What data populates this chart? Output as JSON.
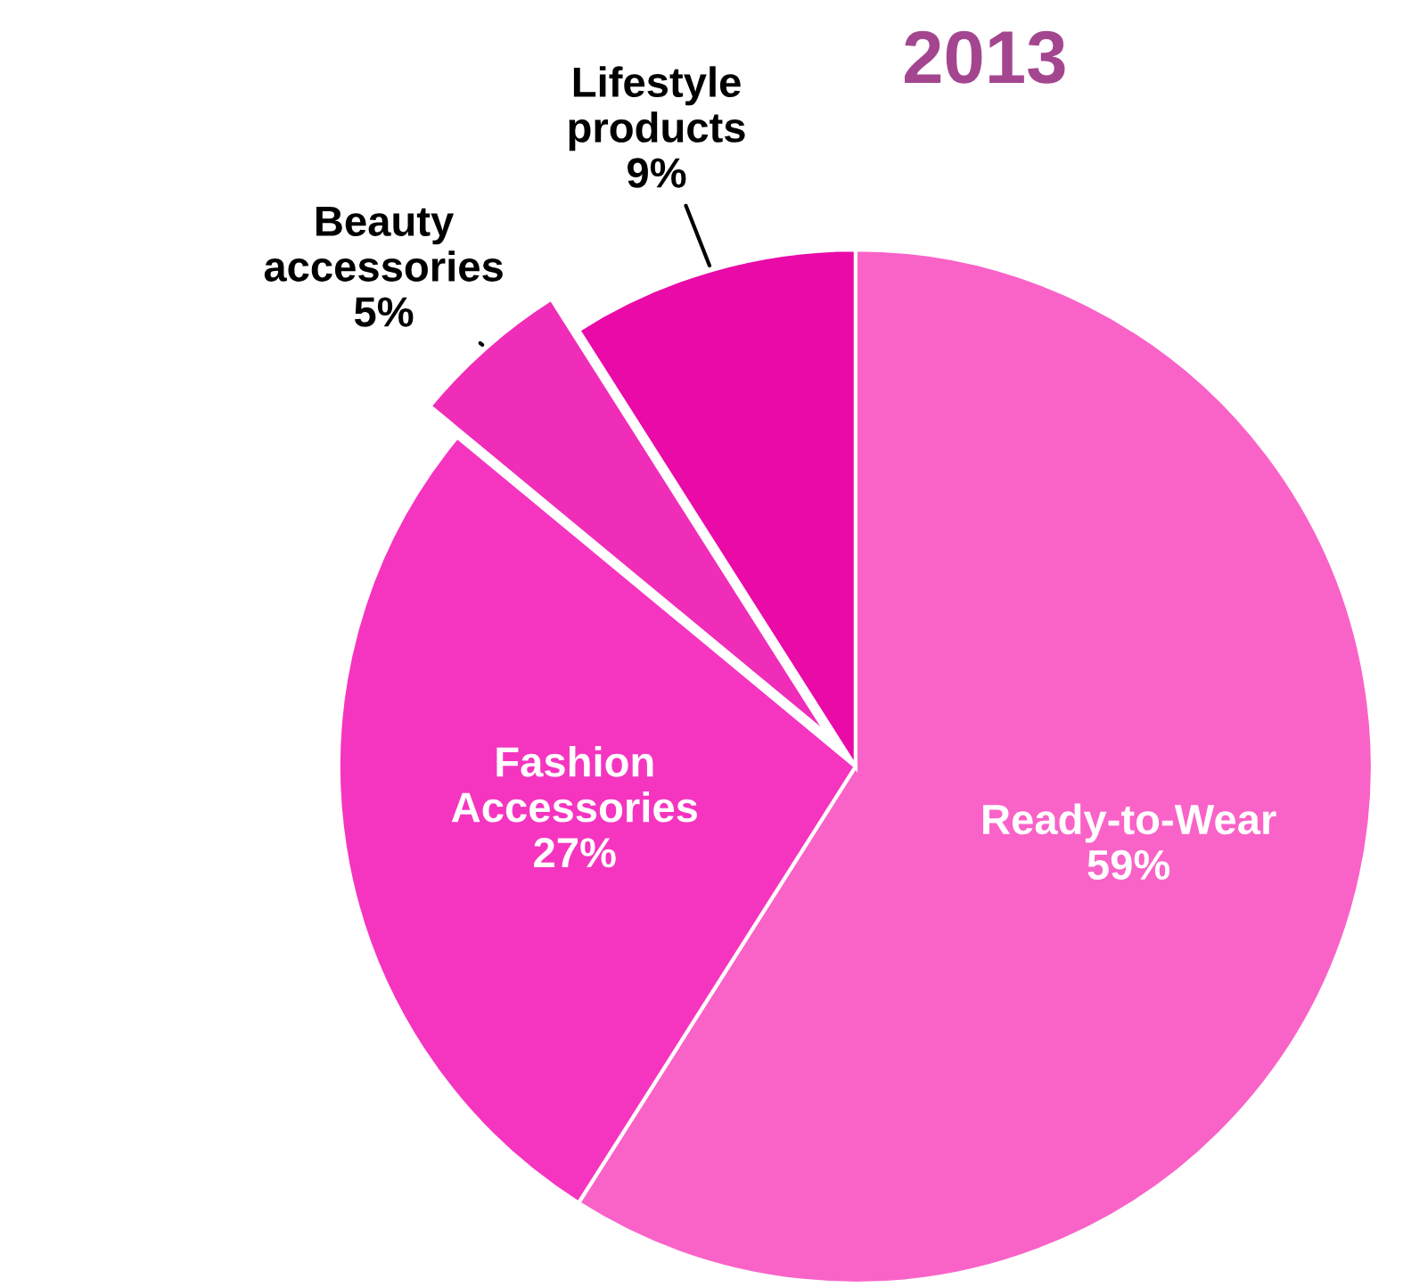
{
  "chart_data": {
    "type": "pie",
    "title": "2013",
    "categories": [
      "Ready-to-Wear",
      "Fashion Accessories",
      "Beauty accessories",
      "Lifestyle products"
    ],
    "values": [
      59,
      27,
      5,
      9
    ],
    "colors": [
      "#f963c8",
      "#f535c0",
      "#f02db8",
      "#e90aa8"
    ],
    "value_labels": [
      "59%",
      "27%",
      "5%",
      "9%"
    ]
  }
}
